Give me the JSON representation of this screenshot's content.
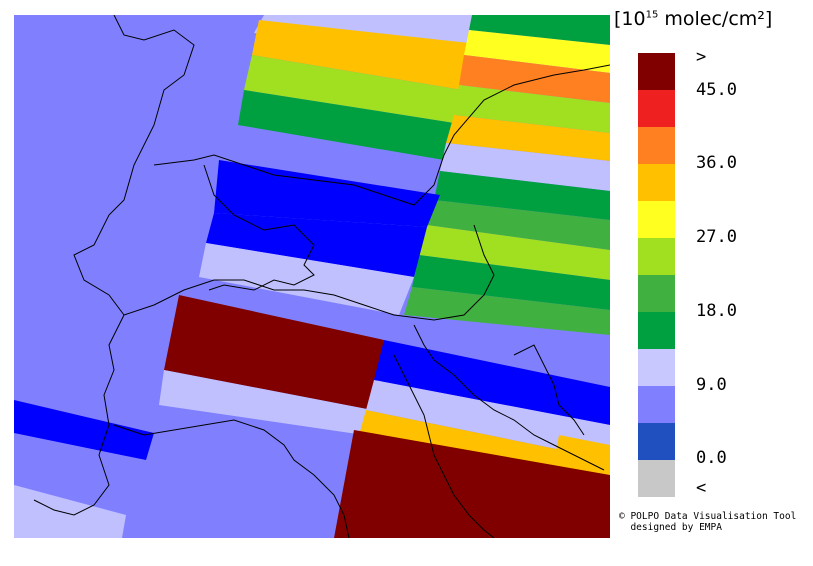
{
  "legend": {
    "unit_prefix": "[10",
    "unit_exponent": "15",
    "unit_suffix": " molec/cm²]",
    "labels": [
      ">",
      "45.0",
      "36.0",
      "27.0",
      "18.0",
      "9.0",
      "0.0",
      "<"
    ],
    "colors": [
      "#800000",
      "#ee2020",
      "#ff8020",
      "#ffc000",
      "#ffff20",
      "#a0e020",
      "#40b040",
      "#00a040",
      "#c8c8ff",
      "#8080ff",
      "#2050c0",
      "#c8c8c8"
    ]
  },
  "credit": {
    "line1": "© POLPO Data Visualisation Tool",
    "line2": "designed by EMPA"
  },
  "map": {
    "background_color": "#8080ff",
    "coastline_color": "#000000"
  }
}
